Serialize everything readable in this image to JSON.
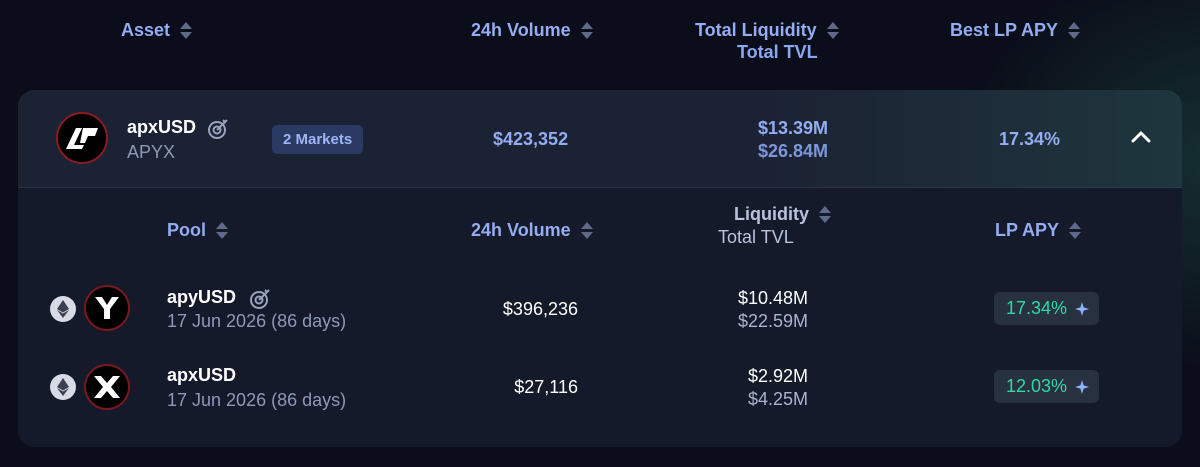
{
  "table_header": {
    "asset": "Asset",
    "volume": "24h Volume",
    "liquidity": "Total Liquidity",
    "liquidity_sub": "Total TVL",
    "apy": "Best LP APY"
  },
  "asset_row": {
    "symbol": "apxUSD",
    "name": "APYX",
    "markets_badge": "2 Markets",
    "volume": "$423,352",
    "liquidity": "$13.39M",
    "tvl": "$26.84M",
    "best_apy": "17.34%"
  },
  "pool_header": {
    "pool": "Pool",
    "volume": "24h Volume",
    "liquidity": "Liquidity",
    "liquidity_sub": "Total TVL",
    "apy": "LP APY"
  },
  "pools": [
    {
      "name": "apyUSD",
      "maturity": "17 Jun 2026 (86 days)",
      "volume": "$396,236",
      "liquidity": "$10.48M",
      "tvl": "$22.59M",
      "apy": "17.34%"
    },
    {
      "name": "apxUSD",
      "maturity": "17 Jun 2026 (86 days)",
      "volume": "$27,116",
      "liquidity": "$2.92M",
      "tvl": "$4.25M",
      "apy": "12.03%"
    }
  ],
  "colors": {
    "background": "#0b0e1a",
    "accent_blue": "#93acf2",
    "apy_green": "#2fd9a4",
    "logo_ring": "#8b1a22"
  }
}
